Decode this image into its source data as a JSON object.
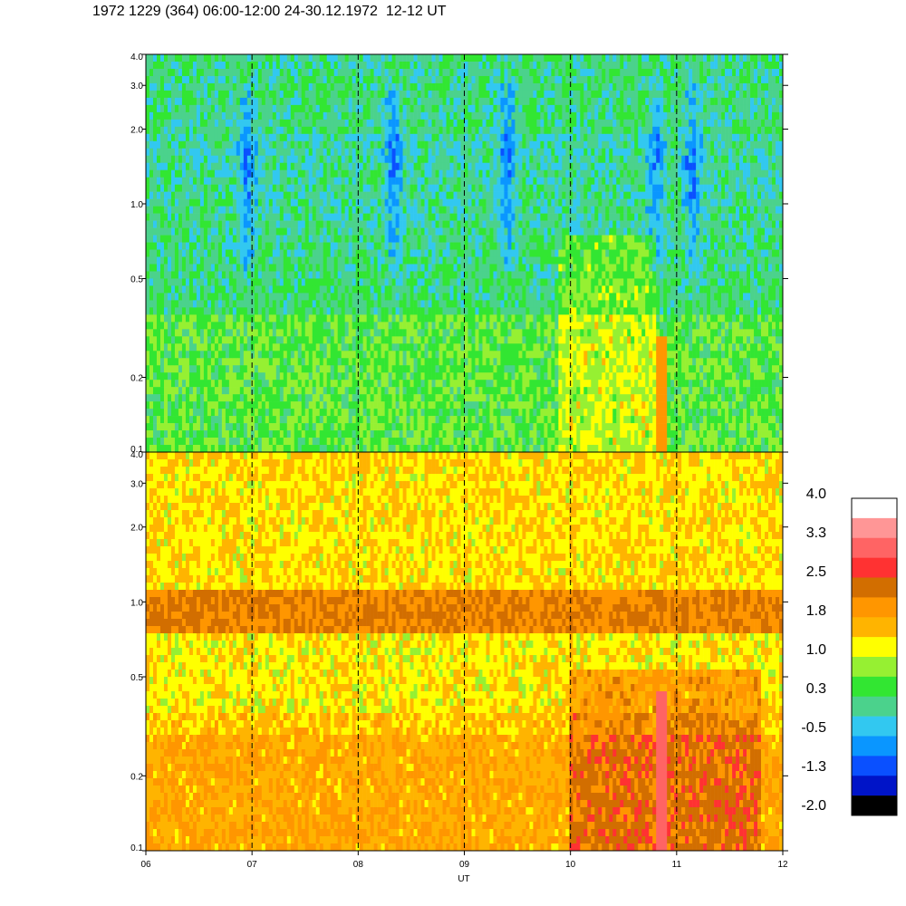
{
  "title": "1972 1229 (364) 06:00-12:00 24-30.12.1972  12-12 UT",
  "chart_data": {
    "type": "heatmap",
    "xlabel": "UT",
    "x_ticks": [
      "06",
      "07",
      "08",
      "09",
      "10",
      "11",
      "12"
    ],
    "x_range": [
      6,
      12
    ],
    "y_scale": "log",
    "y_range": [
      0.1,
      4.0
    ],
    "y_ticks": [
      "0.1",
      "0.2",
      "0.5",
      "1.0",
      "2.0",
      "3.0",
      "4.0"
    ],
    "dashed_lines_x": [
      7,
      8,
      9,
      10,
      11
    ],
    "panels": [
      {
        "name": "upper",
        "dominant_colors": [
          "#32e632",
          "#96f032",
          "#32c8f0",
          "#0a64ff",
          "#0000c8"
        ],
        "features": [
          {
            "x": [
              6.9,
              7.0
            ],
            "y": [
              0.9,
              2.5
            ],
            "level": "-1.3"
          },
          {
            "x": [
              8.3,
              8.4
            ],
            "y": [
              0.9,
              2.5
            ],
            "level": "-1.3"
          },
          {
            "x": [
              9.3,
              9.5
            ],
            "y": [
              1.2,
              2.2
            ],
            "level": "-0.5"
          },
          {
            "x": [
              10.7,
              11.2
            ],
            "y": [
              1.0,
              2.5
            ],
            "level": "-1.3"
          },
          {
            "x": [
              10.8,
              10.92
            ],
            "y": [
              0.1,
              0.27
            ],
            "level": "1.8"
          }
        ]
      },
      {
        "name": "lower",
        "dominant_colors": [
          "#ffb400",
          "#ff9600",
          "#ffff00",
          "#96f032",
          "#d26e00",
          "#ff3232"
        ],
        "features": [
          {
            "x": [
              6.0,
              12.0
            ],
            "y": [
              0.78,
              0.98
            ],
            "level": "2.5"
          },
          {
            "x": [
              10.0,
              11.8
            ],
            "y": [
              0.1,
              0.45
            ],
            "level": "2.5"
          },
          {
            "x": [
              10.8,
              10.92
            ],
            "y": [
              0.1,
              0.4
            ],
            "level": "3.3"
          }
        ]
      }
    ],
    "colorbar": {
      "labels": [
        "4.0",
        "3.3",
        "2.5",
        "1.8",
        "1.0",
        "0.3",
        "-0.5",
        "-1.3",
        "-2.0"
      ],
      "colors": [
        "#ffffff",
        "#ff9696",
        "#ff6464",
        "#ff3232",
        "#d26e00",
        "#ff9600",
        "#ffb400",
        "#ffff00",
        "#96f032",
        "#32e632",
        "#4bd28c",
        "#32c8f0",
        "#0a96ff",
        "#0a50ff",
        "#0014c8",
        "#000000"
      ]
    }
  }
}
